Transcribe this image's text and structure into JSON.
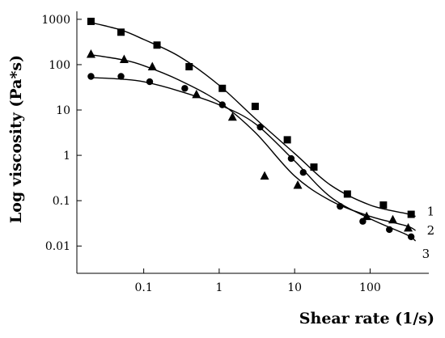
{
  "chart_data": {
    "type": "scatter",
    "xlabel": "Shear rate (1/s)",
    "ylabel": "Log viscosity (Pa*s)",
    "xscale": "log",
    "yscale": "log",
    "xlim": [
      0.013,
      600
    ],
    "ylim": [
      0.0025,
      1500
    ],
    "x_ticks": [
      0.1,
      1,
      10,
      100
    ],
    "x_tick_labels": [
      "0.1",
      "1",
      "10",
      "100"
    ],
    "y_ticks": [
      1000,
      100,
      10,
      1,
      0.1,
      0.01
    ],
    "y_tick_labels": [
      "1000",
      "100",
      "10",
      "1",
      "0.1",
      "0.01"
    ],
    "grid": false,
    "series": [
      {
        "name": "1",
        "marker": "square",
        "x": [
          0.02,
          0.05,
          0.15,
          0.4,
          1.1,
          3,
          8,
          18,
          50,
          150,
          350
        ],
        "y": [
          900,
          520,
          270,
          90,
          30,
          12,
          2.2,
          0.55,
          0.14,
          0.08,
          0.05
        ],
        "curve_x": [
          0.02,
          0.05,
          0.1,
          0.3,
          1,
          3,
          10,
          30,
          100,
          300,
          400
        ],
        "curve_y": [
          850,
          580,
          360,
          150,
          35,
          6.5,
          1.1,
          0.22,
          0.08,
          0.052,
          0.045
        ]
      },
      {
        "name": "2",
        "marker": "triangle",
        "x": [
          0.02,
          0.055,
          0.13,
          0.5,
          1.5,
          4,
          11,
          90,
          200,
          320
        ],
        "y": [
          170,
          130,
          90,
          22,
          7,
          0.35,
          0.22,
          0.045,
          0.038,
          0.025
        ],
        "curve_x": [
          0.02,
          0.05,
          0.1,
          0.3,
          1,
          3,
          10,
          30,
          100,
          300,
          400
        ],
        "curve_y": [
          165,
          130,
          95,
          45,
          15,
          3.2,
          0.35,
          0.1,
          0.045,
          0.028,
          0.022
        ]
      },
      {
        "name": "3",
        "marker": "circle",
        "x": [
          0.02,
          0.05,
          0.12,
          0.35,
          1.1,
          3.5,
          9,
          13,
          40,
          80,
          180,
          350
        ],
        "y": [
          55,
          55,
          42,
          30,
          13,
          4.2,
          0.85,
          0.42,
          0.075,
          0.035,
          0.023,
          0.016
        ],
        "curve_x": [
          0.02,
          0.05,
          0.1,
          0.3,
          1,
          3,
          10,
          30,
          100,
          300,
          400
        ],
        "curve_y": [
          52,
          48,
          42,
          26,
          13,
          5,
          0.75,
          0.12,
          0.04,
          0.018,
          0.013
        ]
      }
    ]
  }
}
